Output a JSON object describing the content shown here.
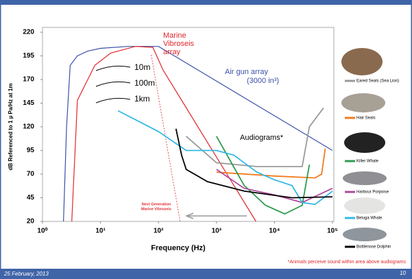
{
  "chart_data": {
    "type": "line",
    "log_x": true,
    "xlabel": "Frequency (Hz)",
    "ylabel": "dB Referenced to 1 µ Pa/Hz at 1m",
    "xlim": [
      1,
      100000
    ],
    "xticks": [
      {
        "value": 1,
        "label": "10⁰"
      },
      {
        "value": 10,
        "label": "10¹"
      },
      {
        "value": 100,
        "label": "10²"
      },
      {
        "value": 1000,
        "label": "10³"
      },
      {
        "value": 10000,
        "label": "10⁴"
      },
      {
        "value": 100000,
        "label": "10⁵"
      }
    ],
    "ylim": [
      20,
      220
    ],
    "yticks": [
      20,
      45,
      70,
      95,
      120,
      145,
      170,
      195,
      220
    ],
    "source_series": [
      {
        "color": "#3a4fa8",
        "dash": false,
        "x": [
          2.3,
          2.6,
          3,
          4,
          6,
          10,
          30,
          100,
          100000
        ],
        "values": [
          20,
          120,
          185,
          195,
          200,
          203,
          205,
          205,
          95
        ]
      },
      {
        "color": "#e0262b",
        "dash": false,
        "x": [
          3.2,
          4,
          5,
          8,
          15,
          40,
          80,
          120,
          4800
        ],
        "values": [
          20,
          148,
          160,
          185,
          198,
          205,
          204,
          180,
          20
        ]
      },
      {
        "color": "#e0262b",
        "dash": true,
        "x": [
          75,
          236
        ],
        "values": [
          196,
          20
        ]
      }
    ],
    "series": [
      {
        "name": "Eared Seals (Sea Lion)",
        "color": "#999999",
        "x": [
          300,
          1000,
          5000,
          30000,
          40000,
          70000
        ],
        "values": [
          110,
          82,
          78,
          78,
          120,
          140
        ]
      },
      {
        "name": "Hair Seals",
        "color": "#f07c1e",
        "x": [
          1000,
          10000,
          50000,
          65000,
          75000
        ],
        "values": [
          72,
          68,
          66,
          70,
          97
        ]
      },
      {
        "name": "Killer Whale",
        "color": "#2e9b4e",
        "x": [
          1000,
          3000,
          7000,
          15000,
          30000,
          40000
        ],
        "values": [
          110,
          58,
          37,
          28,
          37,
          80
        ]
      },
      {
        "name": "Harbour Porpoise",
        "color": "#b04a9c",
        "x": [
          1000,
          3000,
          10000,
          30000,
          100000
        ],
        "values": [
          75,
          55,
          48,
          40,
          55
        ]
      },
      {
        "name": "Beluga Whale",
        "color": "#33b8e6",
        "x": [
          20,
          100,
          300,
          1000,
          2000,
          5000,
          10000,
          20000,
          30000,
          50000,
          100000
        ],
        "values": [
          137,
          115,
          95,
          95,
          90,
          72,
          64,
          58,
          40,
          38,
          52
        ]
      },
      {
        "name": "Bottlenose Dolphin",
        "color": "#000000",
        "x": [
          200,
          250,
          300,
          700,
          3000,
          20000,
          100000
        ],
        "values": [
          118,
          90,
          75,
          62,
          52,
          45,
          46
        ]
      }
    ],
    "annotations": {
      "vibroseis": [
        "Marine",
        "Vibroseis",
        "array"
      ],
      "airgun": [
        "Air gun array",
        "(3000 in³)"
      ],
      "next_gen": [
        "Next Generation",
        "Marine Vibroseis"
      ],
      "distances": [
        "10m",
        "100m",
        "1km"
      ],
      "audiograms": "Audiograms*",
      "footnote": "*Animals perceive sound within area above audiograms"
    }
  },
  "footer": {
    "date": "25 February, 2013",
    "page": "10"
  }
}
